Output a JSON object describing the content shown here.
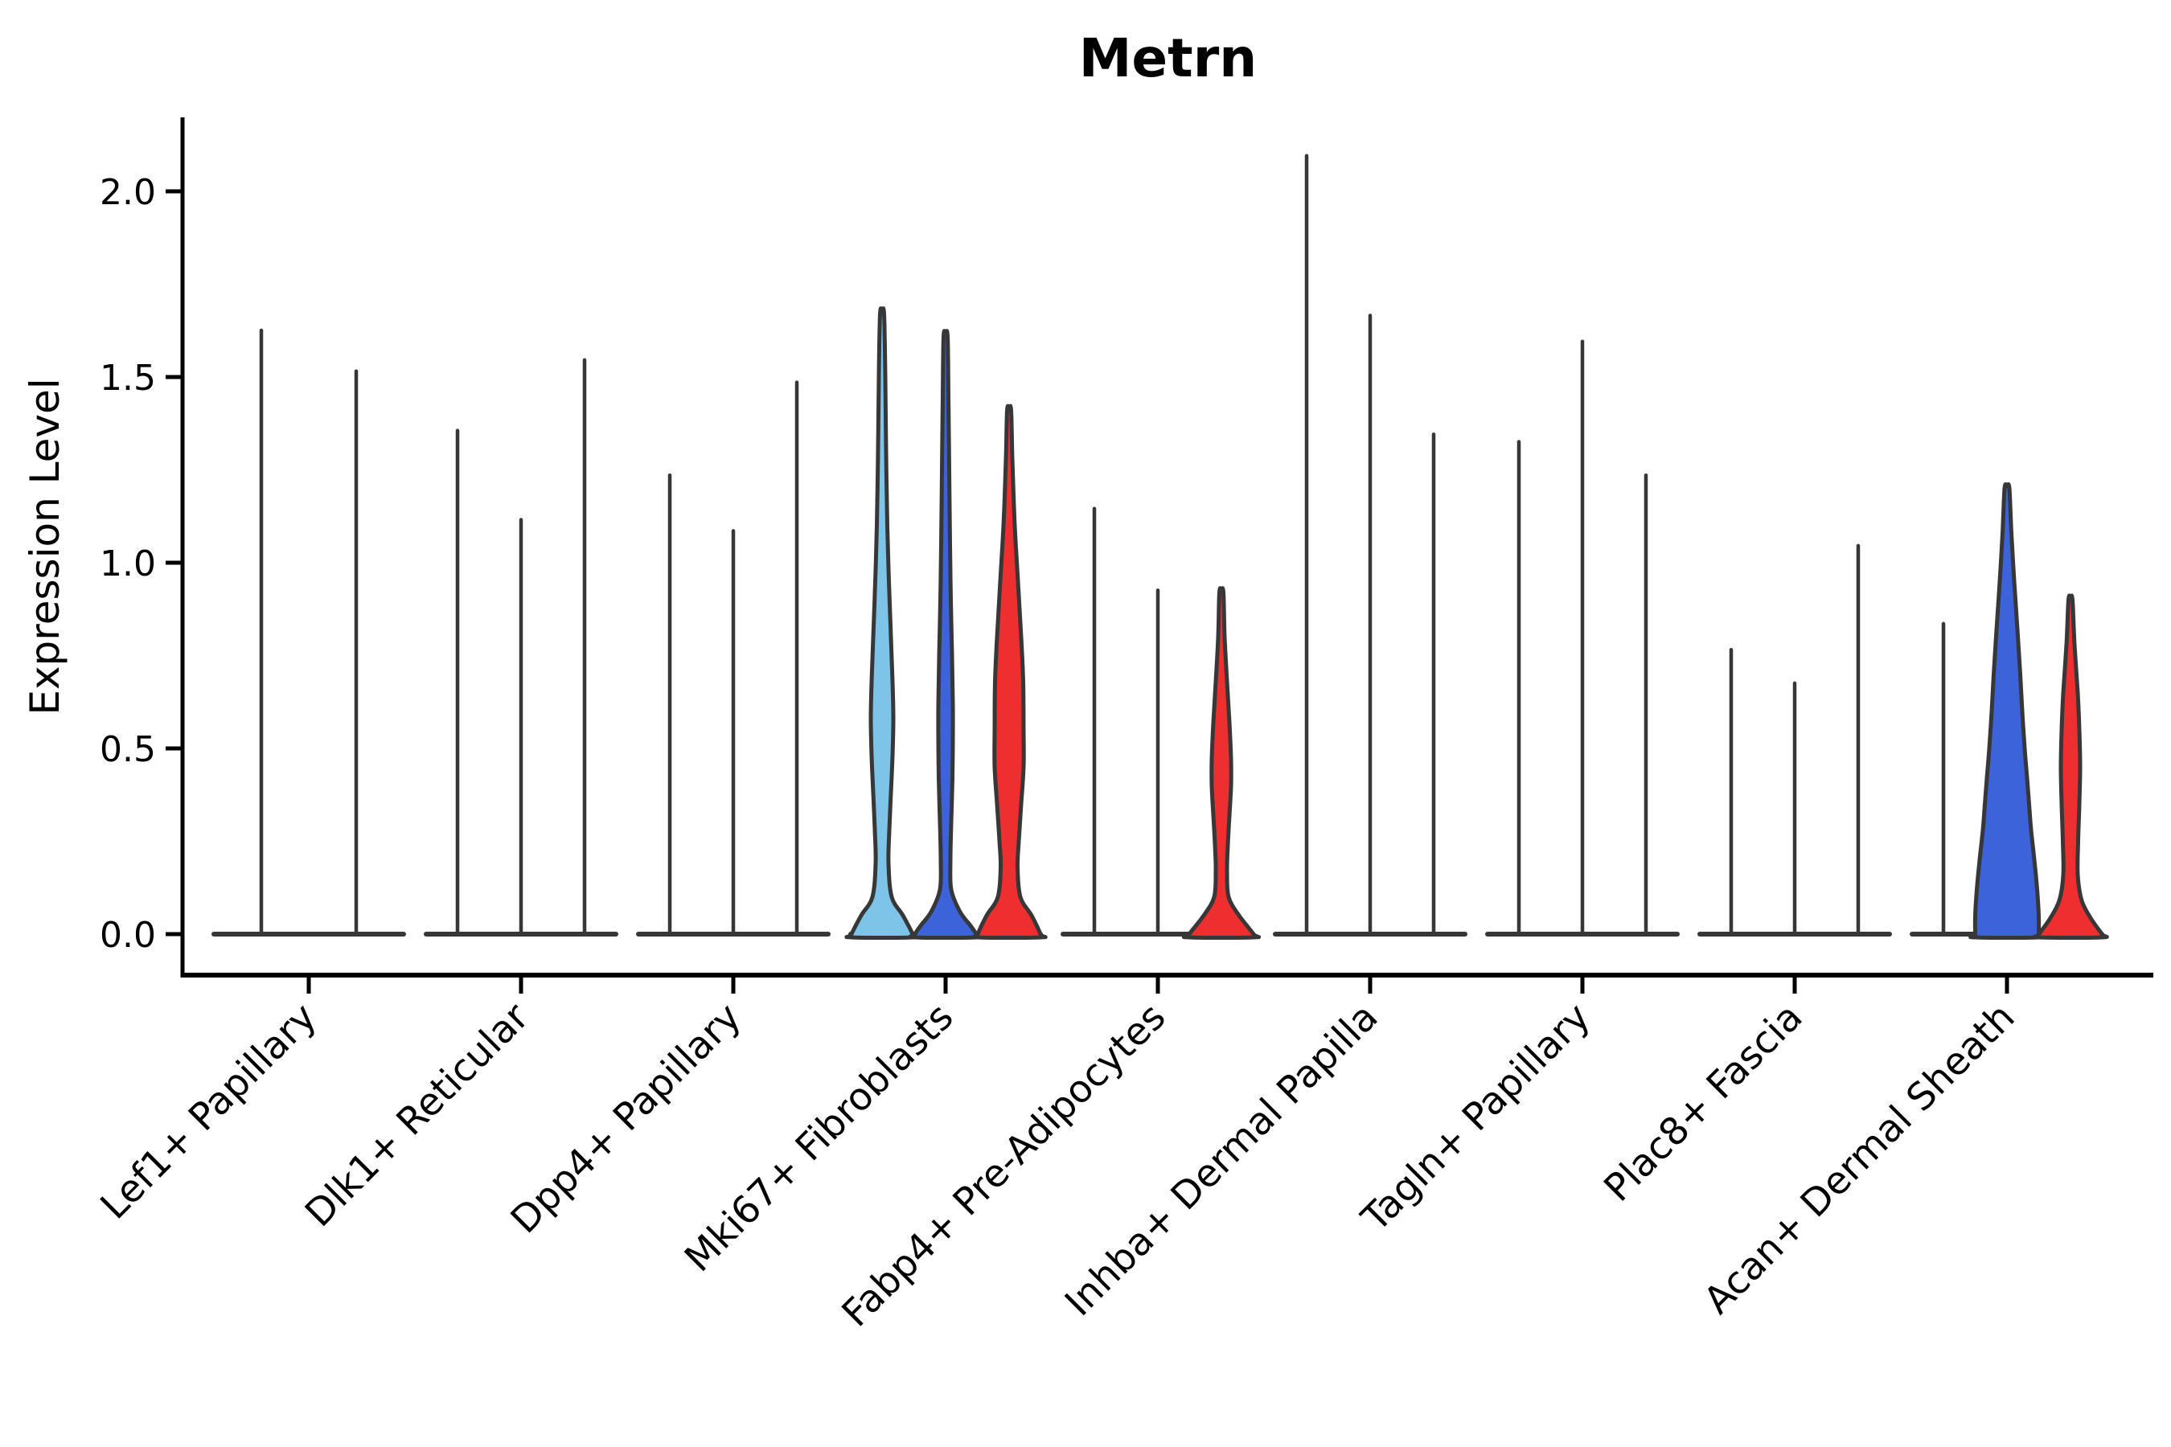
{
  "title": "Metrn",
  "chart_data": {
    "type": "violin",
    "title": "Metrn",
    "ylabel": "Expression Level",
    "xlabel": "",
    "ylim": [
      -0.09,
      2.19
    ],
    "yticks": [
      0.0,
      0.5,
      1.0,
      1.5,
      2.0
    ],
    "grid": false,
    "legend": null,
    "colors": {
      "lightblue": "#7EC4E8",
      "blue": "#3C63D9",
      "red": "#EF2F2F",
      "ink": "#373737",
      "axis": "#000000"
    },
    "categories": [
      "Lef1+ Papillary",
      "Dlk1+ Reticular",
      "Dpp4+ Papillary",
      "Mki67+ Fibroblasts",
      "Fabp4+ Pre-Adipocytes",
      "Inhba+ Dermal Papilla",
      "Tagln+ Papillary",
      "Plac8+ Fascia",
      "Acan+ Dermal Sheath"
    ],
    "groups": [
      {
        "label": "Lef1+ Papillary",
        "violins": [
          {
            "dx": -59,
            "kind": "line",
            "color": "lightblue",
            "max": 1.63
          },
          {
            "dx": 59,
            "kind": "line",
            "color": "blue",
            "max": 1.52
          }
        ]
      },
      {
        "label": "Dlk1+ Reticular",
        "violins": [
          {
            "dx": -79,
            "kind": "line",
            "color": "lightblue",
            "max": 1.36
          },
          {
            "dx": 0,
            "kind": "line",
            "color": "blue",
            "max": 1.12
          },
          {
            "dx": 79,
            "kind": "line",
            "color": "red",
            "max": 1.55
          }
        ]
      },
      {
        "label": "Dpp4+ Papillary",
        "violins": [
          {
            "dx": -79,
            "kind": "line",
            "color": "lightblue",
            "max": 1.24
          },
          {
            "dx": 0,
            "kind": "line",
            "color": "blue",
            "max": 1.09
          },
          {
            "dx": 79,
            "kind": "line",
            "color": "red",
            "max": 1.49
          }
        ]
      },
      {
        "label": "Mki67+ Fibroblasts",
        "violins": [
          {
            "dx": -79,
            "kind": "violin",
            "color": "lightblue",
            "max": 1.67,
            "profile": [
              [
                1.67,
                2.5
              ],
              [
                1.5,
                4
              ],
              [
                1.3,
                5
              ],
              [
                1.1,
                6.5
              ],
              [
                0.95,
                8.5
              ],
              [
                0.8,
                11
              ],
              [
                0.68,
                13
              ],
              [
                0.58,
                14
              ],
              [
                0.48,
                13
              ],
              [
                0.38,
                11
              ],
              [
                0.28,
                9
              ],
              [
                0.19,
                8
              ],
              [
                0.1,
                12
              ],
              [
                0.05,
                26
              ],
              [
                0.0,
                38
              ]
            ]
          },
          {
            "dx": 0,
            "kind": "violin",
            "color": "blue",
            "max": 1.61,
            "profile": [
              [
                1.61,
                2.5
              ],
              [
                1.45,
                3.5
              ],
              [
                1.25,
                4.5
              ],
              [
                1.05,
                5.5
              ],
              [
                0.9,
                6.5
              ],
              [
                0.75,
                8
              ],
              [
                0.62,
                9
              ],
              [
                0.52,
                9
              ],
              [
                0.42,
                8.5
              ],
              [
                0.3,
                7
              ],
              [
                0.2,
                6
              ],
              [
                0.12,
                7
              ],
              [
                0.06,
                18
              ],
              [
                0.02,
                32
              ],
              [
                0.0,
                38
              ]
            ]
          },
          {
            "dx": 79,
            "kind": "violin",
            "color": "red",
            "max": 1.41,
            "profile": [
              [
                1.41,
                2.5
              ],
              [
                1.28,
                4
              ],
              [
                1.1,
                7
              ],
              [
                0.95,
                11
              ],
              [
                0.8,
                15
              ],
              [
                0.68,
                17.5
              ],
              [
                0.55,
                18
              ],
              [
                0.45,
                18
              ],
              [
                0.35,
                15
              ],
              [
                0.25,
                12
              ],
              [
                0.18,
                10.5
              ],
              [
                0.1,
                14
              ],
              [
                0.05,
                28
              ],
              [
                0.0,
                39
              ]
            ]
          }
        ]
      },
      {
        "label": "Fabp4+ Pre-Adipocytes",
        "violins": [
          {
            "dx": -79,
            "kind": "line",
            "color": "lightblue",
            "max": 1.15
          },
          {
            "dx": 0,
            "kind": "line",
            "color": "blue",
            "max": 0.93
          },
          {
            "dx": 79,
            "kind": "violin",
            "color": "red",
            "max": 0.92,
            "profile": [
              [
                0.92,
                2.5
              ],
              [
                0.8,
                4
              ],
              [
                0.68,
                7
              ],
              [
                0.57,
                10
              ],
              [
                0.47,
                12
              ],
              [
                0.4,
                12
              ],
              [
                0.32,
                10
              ],
              [
                0.24,
                8
              ],
              [
                0.17,
                7
              ],
              [
                0.1,
                9
              ],
              [
                0.05,
                22
              ],
              [
                0.0,
                40
              ]
            ]
          }
        ]
      },
      {
        "label": "Inhba+ Dermal Papilla",
        "violins": [
          {
            "dx": -79,
            "kind": "line",
            "color": "lightblue",
            "max": 2.1
          },
          {
            "dx": 0,
            "kind": "line",
            "color": "blue",
            "max": 1.67
          },
          {
            "dx": 79,
            "kind": "line",
            "color": "red",
            "max": 1.35
          }
        ]
      },
      {
        "label": "Tagln+ Papillary",
        "violins": [
          {
            "dx": -79,
            "kind": "line",
            "color": "lightblue",
            "max": 1.33
          },
          {
            "dx": 0,
            "kind": "line",
            "color": "blue",
            "max": 1.6
          },
          {
            "dx": 79,
            "kind": "line",
            "color": "red",
            "max": 1.24
          }
        ]
      },
      {
        "label": "Plac8+ Fascia",
        "violins": [
          {
            "dx": -79,
            "kind": "line",
            "color": "lightblue",
            "max": 0.77
          },
          {
            "dx": 0,
            "kind": "line",
            "color": "blue",
            "max": 0.68
          },
          {
            "dx": 79,
            "kind": "line",
            "color": "red",
            "max": 1.05
          }
        ]
      },
      {
        "label": "Acan+ Dermal Sheath",
        "violins": [
          {
            "dx": -79,
            "kind": "line",
            "color": "lightblue",
            "max": 0.84
          },
          {
            "dx": 0,
            "kind": "violin",
            "color": "blue",
            "max": 1.2,
            "profile": [
              [
                1.2,
                3
              ],
              [
                1.08,
                5.5
              ],
              [
                0.95,
                9
              ],
              [
                0.82,
                13
              ],
              [
                0.7,
                16.5
              ],
              [
                0.6,
                19
              ],
              [
                0.5,
                22
              ],
              [
                0.42,
                25
              ],
              [
                0.35,
                27.5
              ],
              [
                0.28,
                30
              ],
              [
                0.2,
                34
              ],
              [
                0.12,
                37.5
              ],
              [
                0.05,
                39.5
              ],
              [
                0.0,
                39.5
              ]
            ]
          },
          {
            "dx": 79,
            "kind": "violin",
            "color": "red",
            "max": 0.9,
            "profile": [
              [
                0.9,
                2.5
              ],
              [
                0.78,
                5
              ],
              [
                0.65,
                9
              ],
              [
                0.55,
                11
              ],
              [
                0.45,
                12
              ],
              [
                0.35,
                11
              ],
              [
                0.25,
                9.5
              ],
              [
                0.16,
                9
              ],
              [
                0.09,
                14
              ],
              [
                0.04,
                26
              ],
              [
                0.0,
                39
              ]
            ]
          }
        ]
      }
    ]
  }
}
